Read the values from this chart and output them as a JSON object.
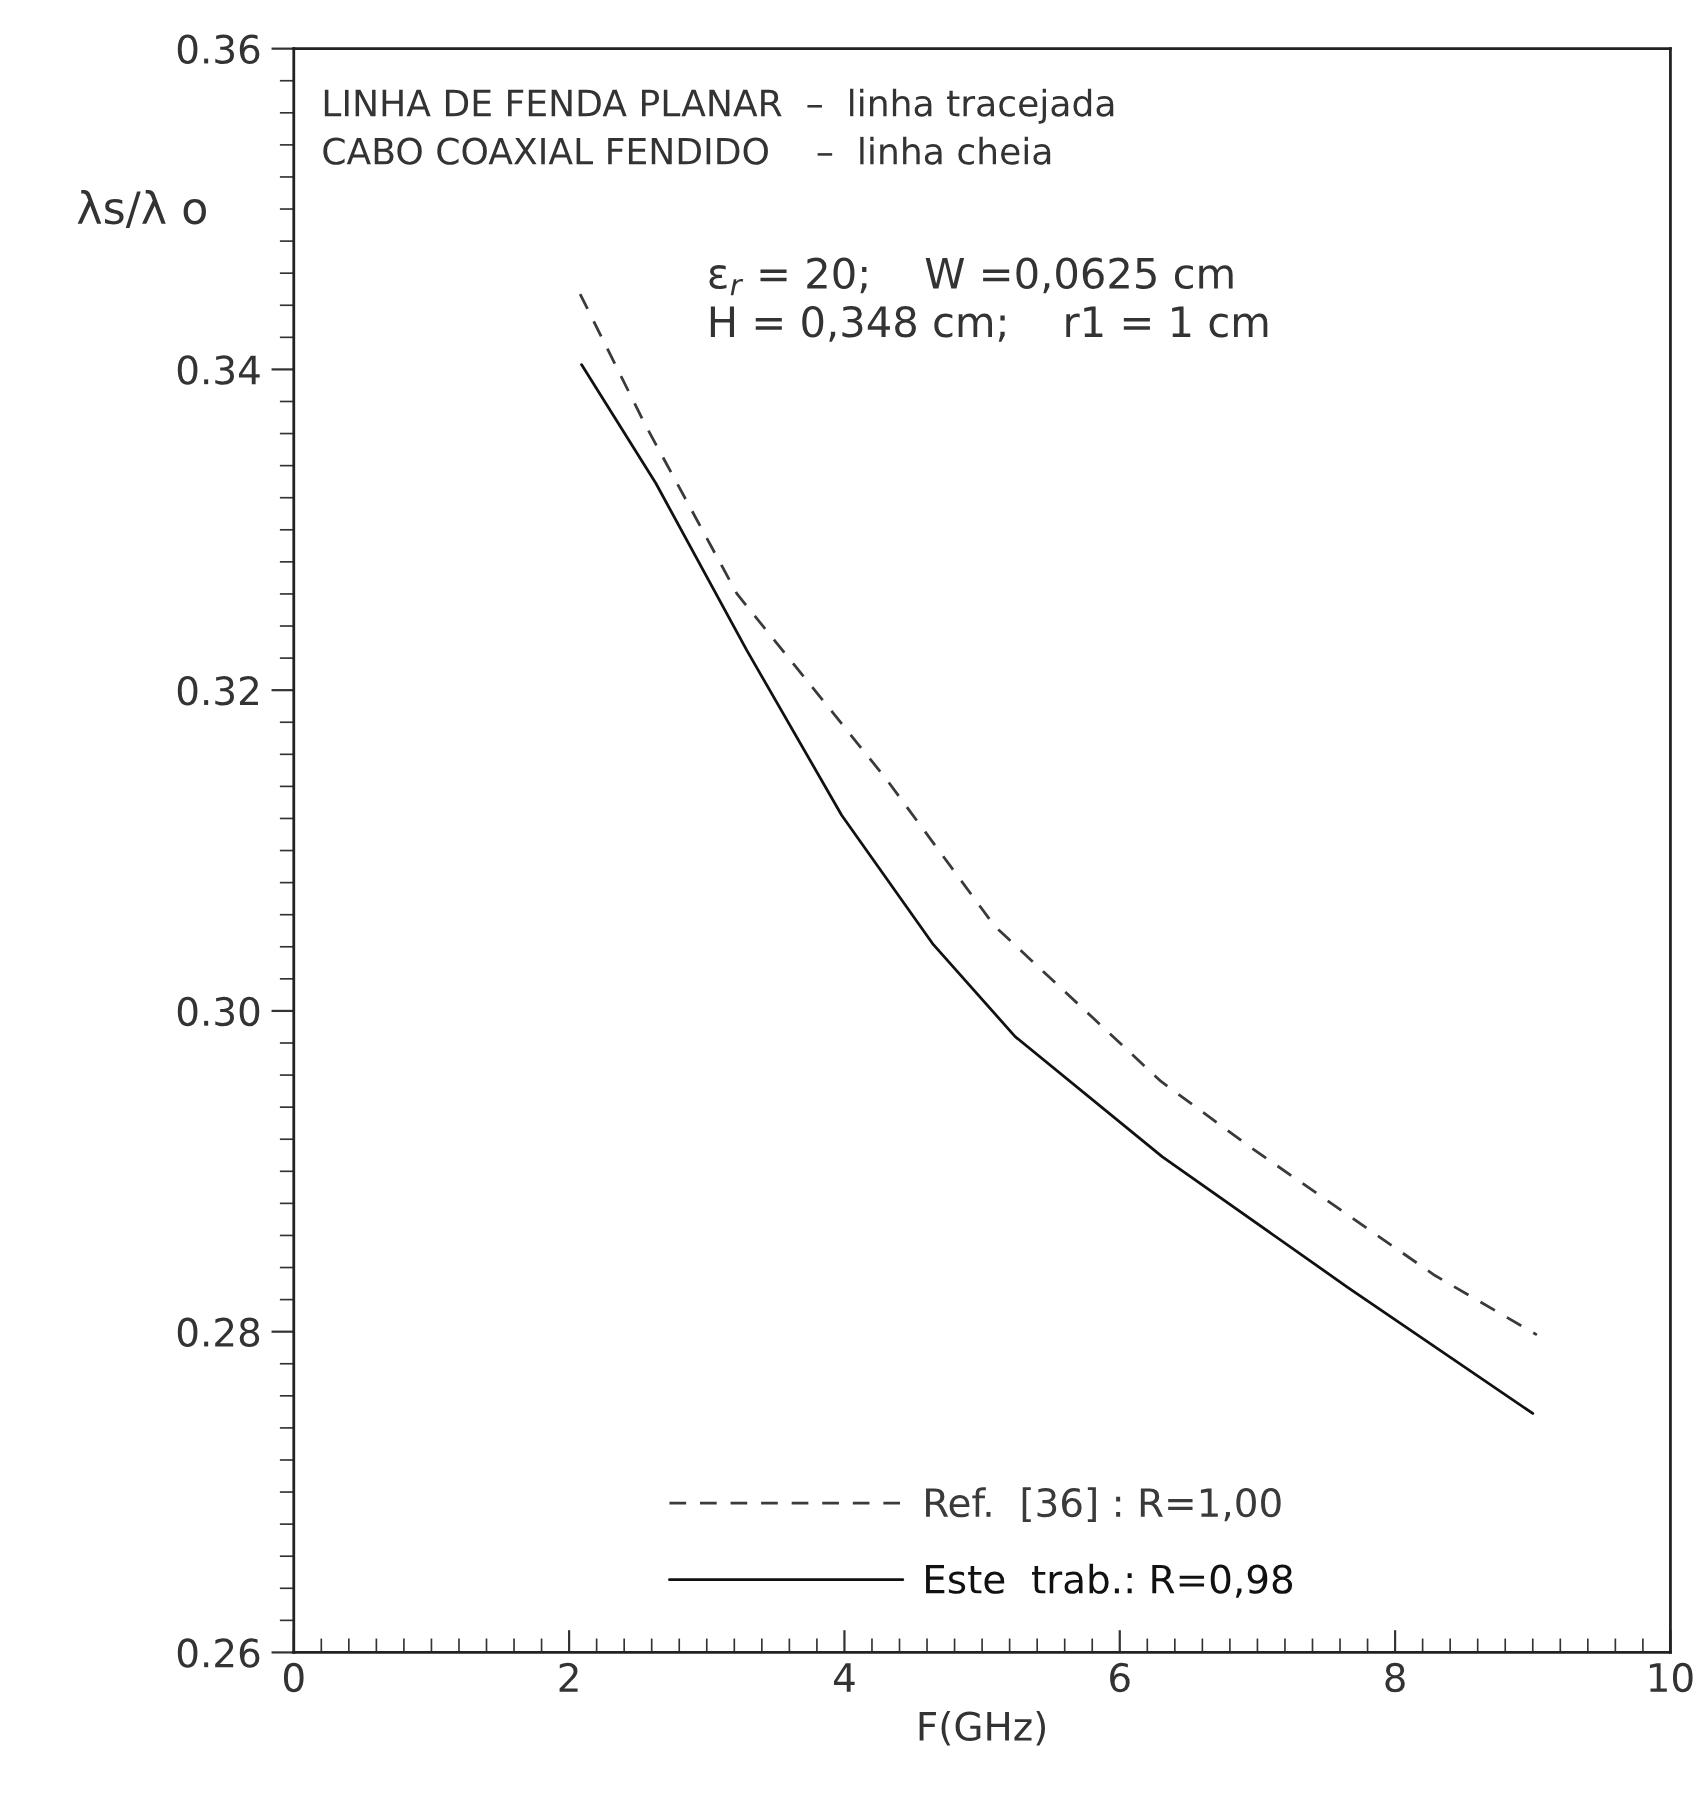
{
  "chart_data": {
    "type": "line",
    "xlabel": "F(GHz)",
    "ylabel": "λs/λ o",
    "annotations": [
      "LINHA DE FENDA PLANAR  –  linha tracejada",
      "CABO COAXIAL FENDIDO    –  linha cheia",
      "ε$_{r}$ = 20;    W =0,0625 cm",
      "H = 0,348 cm;    r1 = 1 cm"
    ],
    "xlim": [
      0,
      10
    ],
    "xticks": [
      0,
      2,
      4,
      6,
      8,
      10
    ],
    "ylim": [
      0.26,
      0.36
    ],
    "yticks": [
      {
        "value": 0.26,
        "label": "0.26"
      },
      {
        "value": 0.28,
        "label": "0.28"
      },
      {
        "value": 0.3,
        "label": "0.30"
      },
      {
        "value": 0.32,
        "label": "0.32"
      },
      {
        "value": 0.34,
        "label": "0.34"
      },
      {
        "value": 0.36,
        "label": "0.36"
      }
    ],
    "grid": false,
    "legend": "bottom",
    "marker": "none",
    "series": [
      {
        "name": "Ref.  [36] : R=1,00",
        "color": "#3a3a3a",
        "line_style": "dashed",
        "x": [
          2.08,
          2.55,
          3.22,
          4.3,
          5.09,
          6.3,
          6.95,
          8.29,
          9.03
        ],
        "values": [
          0.3447,
          0.3366,
          0.326,
          0.3145,
          0.3053,
          0.2956,
          0.2915,
          0.2835,
          0.2798
        ]
      },
      {
        "name": "Este  trab.: R=0,98",
        "color": "#111111",
        "line_style": "solid",
        "x": [
          2.09,
          2.63,
          3.29,
          3.98,
          4.64,
          5.24,
          6.31,
          7.65,
          9.0
        ],
        "values": [
          0.3403,
          0.3329,
          0.3225,
          0.3122,
          0.3042,
          0.2984,
          0.2909,
          0.2828,
          0.2749
        ]
      }
    ]
  }
}
